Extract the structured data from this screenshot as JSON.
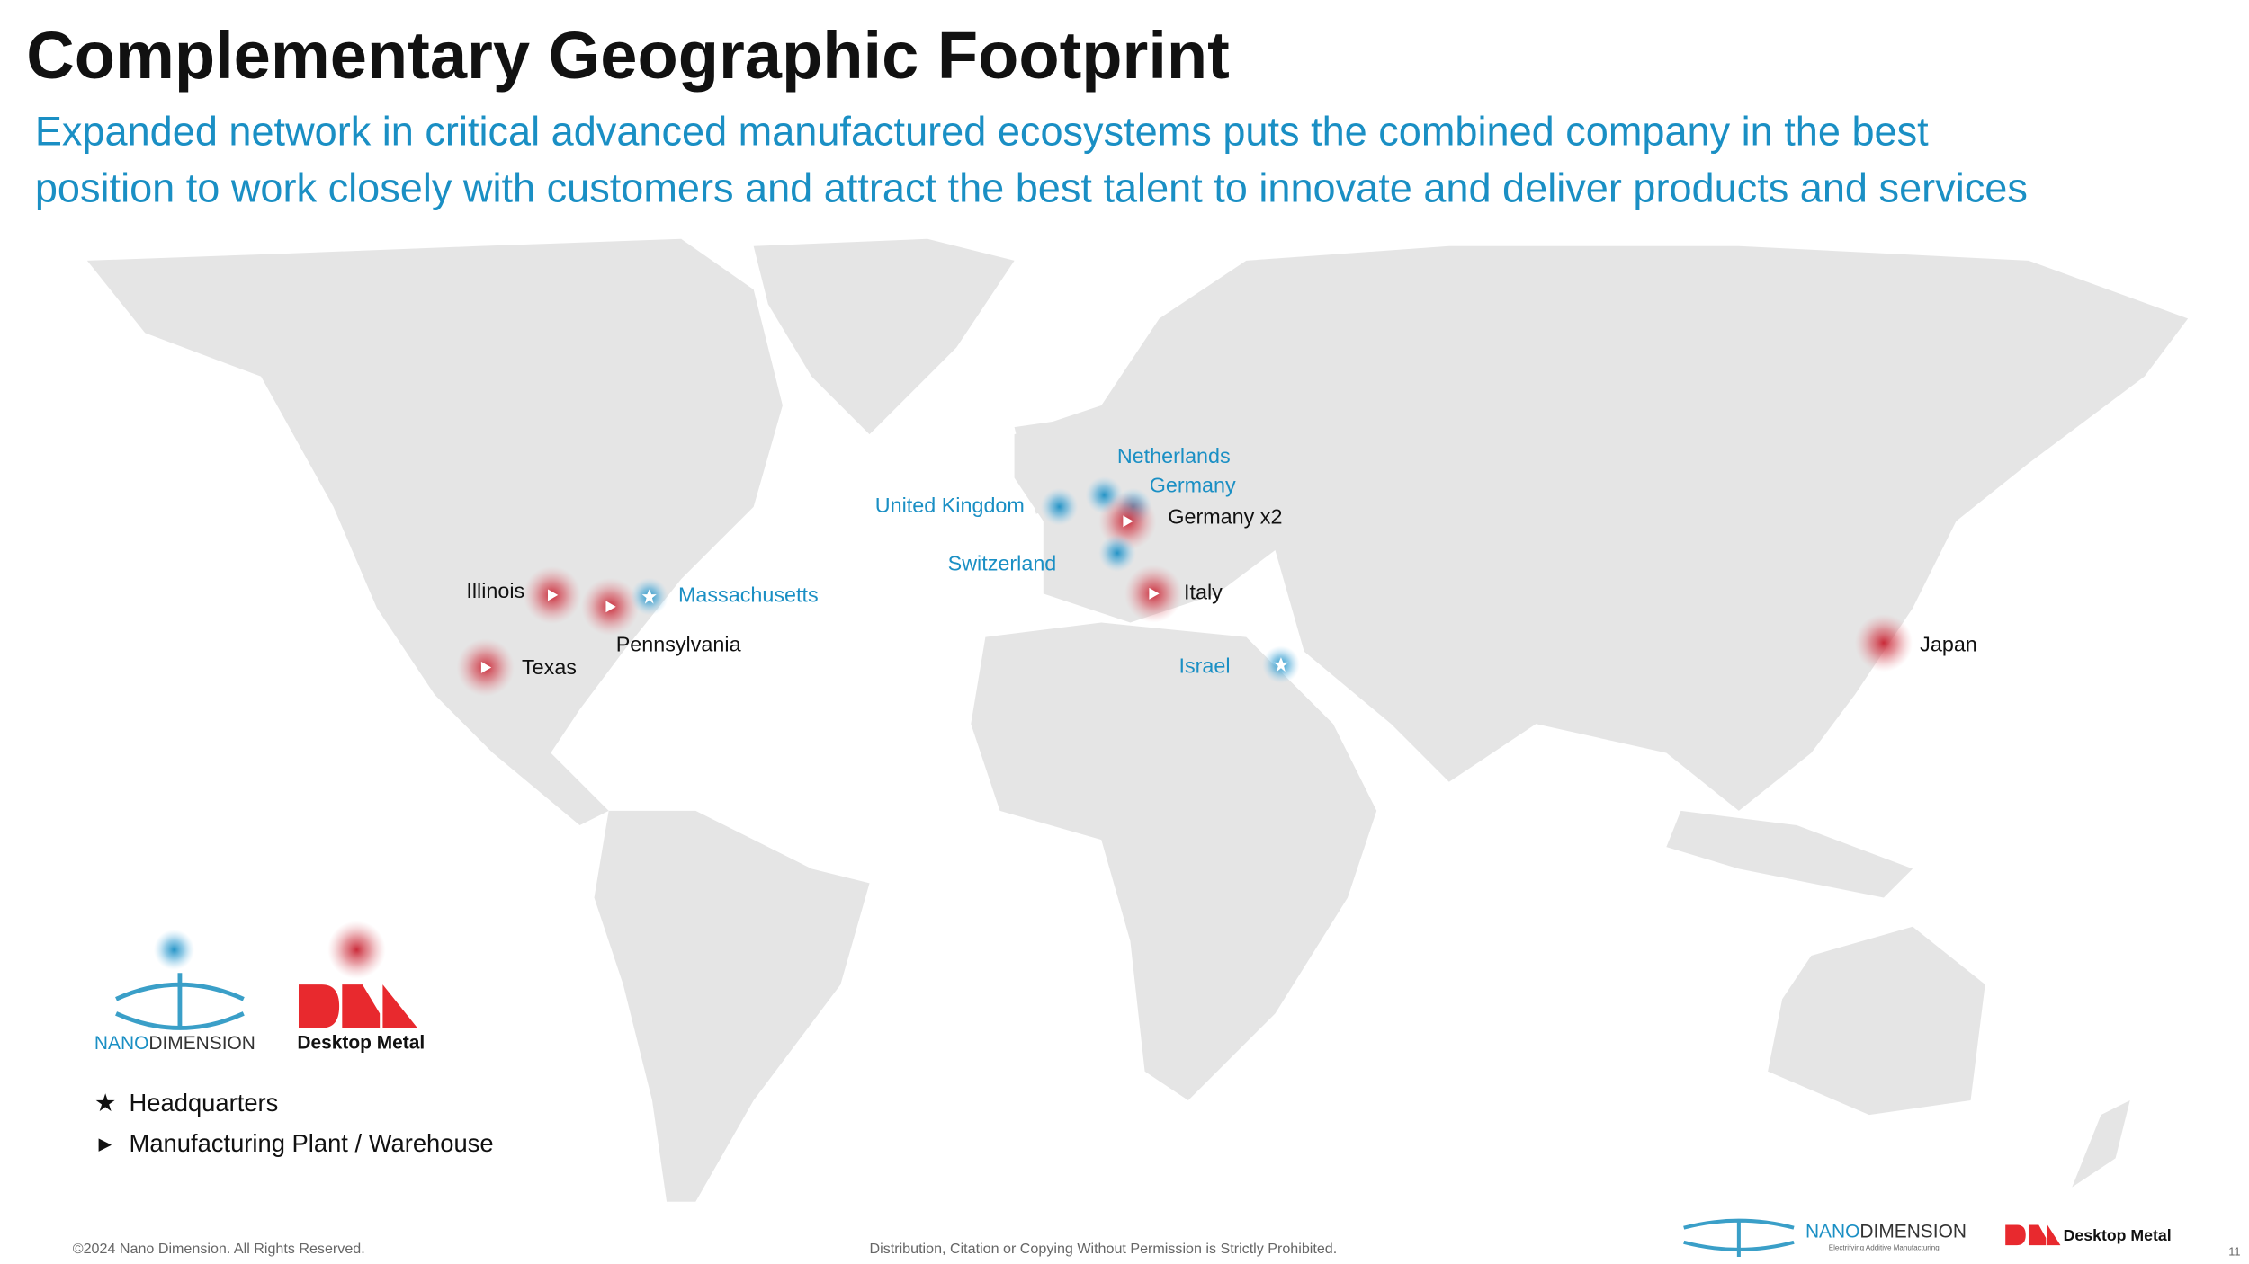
{
  "header": {
    "title": "Complementary Geographic Footprint",
    "subtitle_lines": [
      "Expanded network in critical advanced manufactured ecosystems puts the combined company in the best",
      "position to work closely with customers and attract the best talent to innovate and deliver products and services"
    ]
  },
  "colors": {
    "nano": "#1a8fc4",
    "dm": "#c8202f",
    "label": "#111111"
  },
  "locations": [
    {
      "label": "Netherlands",
      "company": "nano",
      "marker": "dot"
    },
    {
      "label": "Germany",
      "company": "nano",
      "marker": "dot"
    },
    {
      "label": "United Kingdom",
      "company": "nano",
      "marker": "dot"
    },
    {
      "label": "Germany x2",
      "company": "dm",
      "marker": "triangle"
    },
    {
      "label": "Switzerland",
      "company": "nano",
      "marker": "dot"
    },
    {
      "label": "Italy",
      "company": "dm",
      "marker": "triangle"
    },
    {
      "label": "Israel",
      "company": "nano",
      "marker": "star"
    },
    {
      "label": "Japan",
      "company": "dm",
      "marker": "dot"
    },
    {
      "label": "Illinois",
      "company": "dm",
      "marker": "triangle"
    },
    {
      "label": "Pennsylvania",
      "company": "dm",
      "marker": "triangle"
    },
    {
      "label": "Massachusetts",
      "company": "nano",
      "marker": "star"
    },
    {
      "label": "Texas",
      "company": "dm",
      "marker": "triangle"
    }
  ],
  "logos": {
    "nano": {
      "part1": "NANO",
      "part2": "DIMENSION",
      "tagline": "Electrifying Additive Manufacturing"
    },
    "dm": {
      "name": "Desktop Metal"
    }
  },
  "legend": [
    {
      "symbol": "★",
      "text": "Headquarters"
    },
    {
      "symbol": "►",
      "text": "Manufacturing Plant / Warehouse"
    }
  ],
  "footer": {
    "copyright": "©2024 Nano Dimension. All Rights Reserved.",
    "notice": "Distribution, Citation or Copying Without Permission is Strictly Prohibited.",
    "page": "11"
  }
}
